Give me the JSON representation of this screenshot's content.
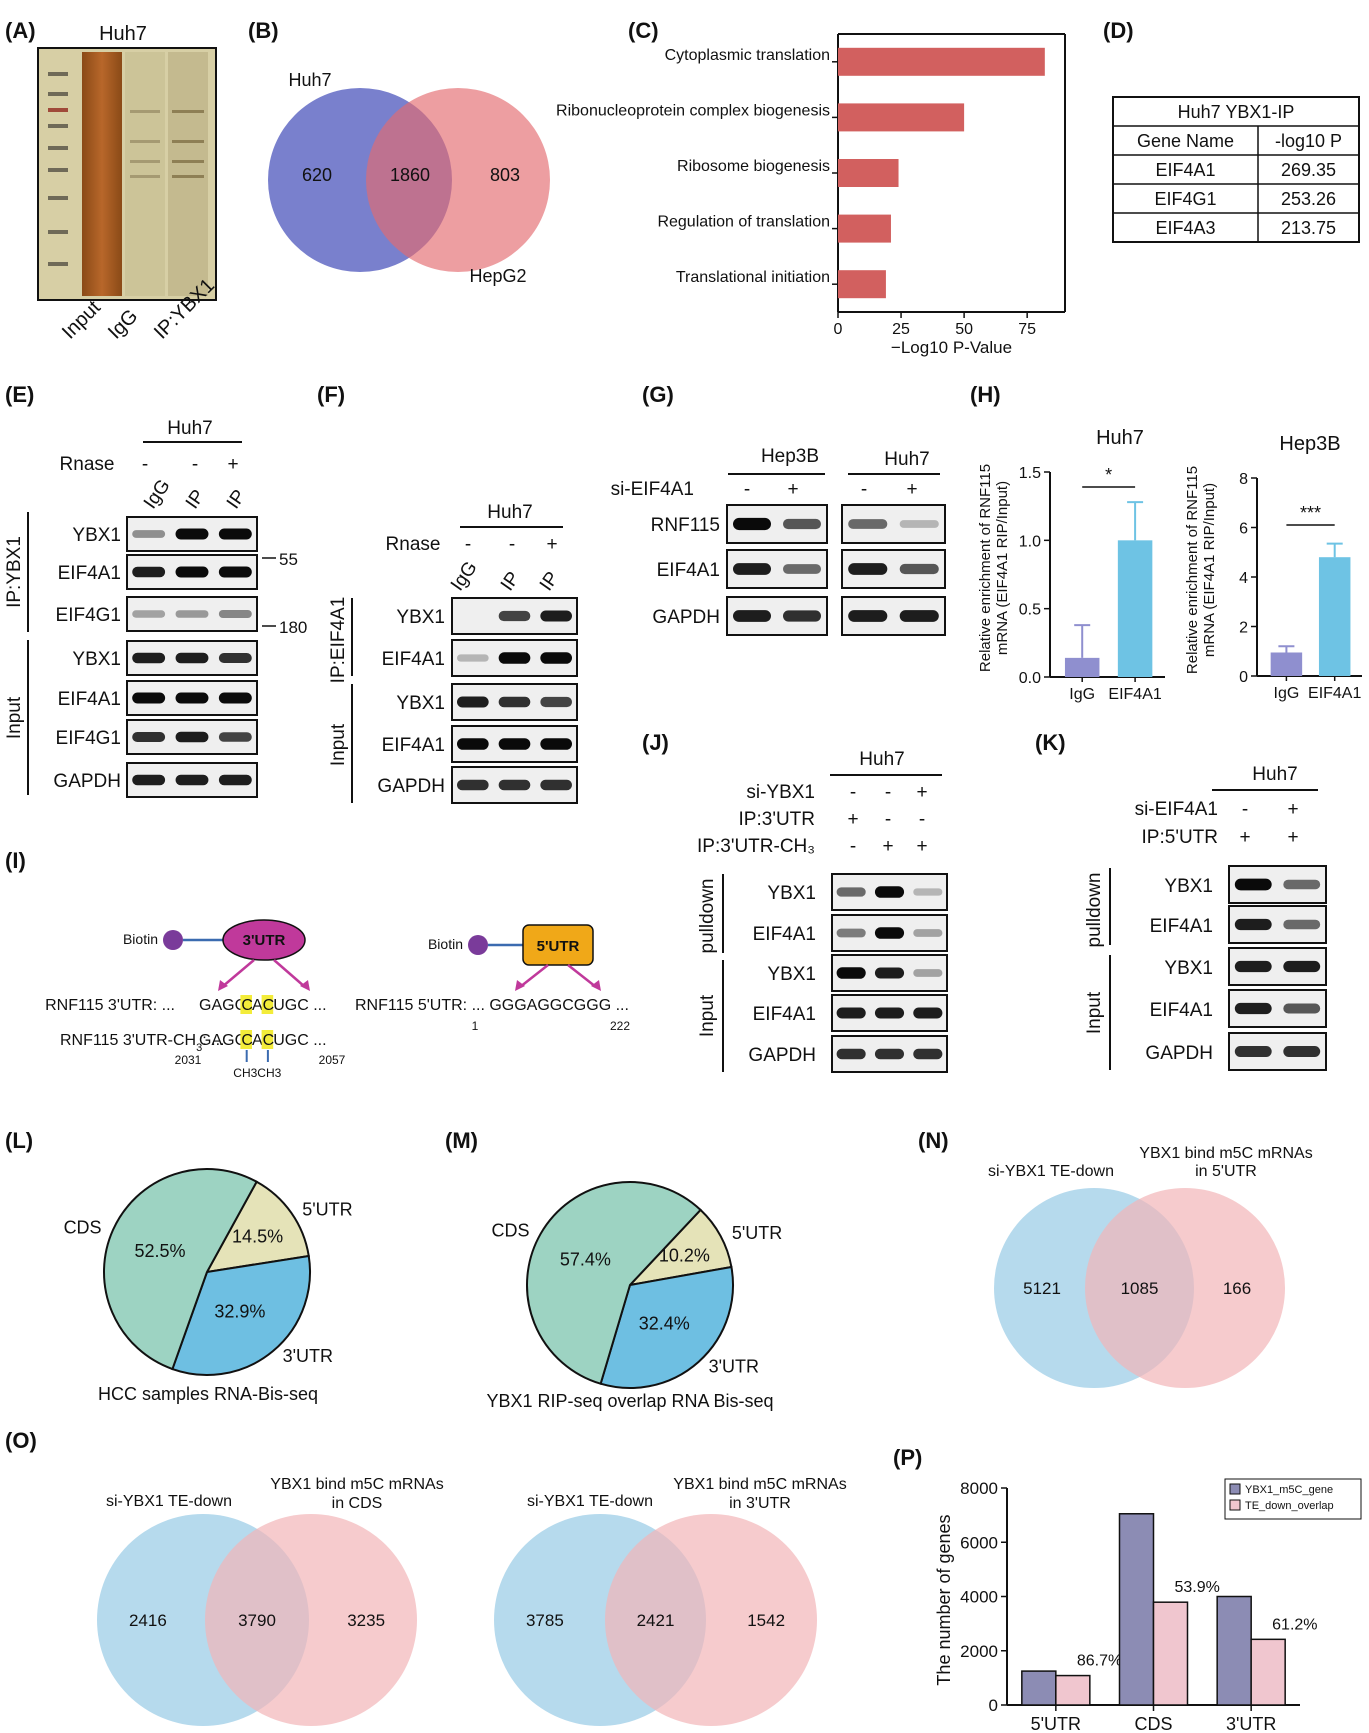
{
  "panels": {
    "A": {
      "label": "(A)",
      "cell": "Huh7",
      "lanes": [
        "Input",
        "IgG",
        "IP:YBX1"
      ]
    },
    "B": {
      "label": "(B)",
      "set1": "Huh7",
      "set2": "HepG2",
      "only1": "620",
      "both": "1860",
      "only2": "803",
      "colors": {
        "set1": "#6a72c8",
        "set2": "#e46a6e"
      }
    },
    "C": {
      "label": "(C)"
    },
    "D": {
      "label": "(D)",
      "title": "Huh7 YBX1-IP",
      "headers": [
        "Gene Name",
        "-log10 P"
      ],
      "rows": [
        [
          "EIF4A1",
          "269.35"
        ],
        [
          "EIF4G1",
          "253.26"
        ],
        [
          "EIF4A3",
          "213.75"
        ]
      ]
    },
    "E": {
      "label": "(E)",
      "cell": "Huh7",
      "rnase": "Rnase",
      "rnase_signs": [
        "-",
        "-",
        "+"
      ],
      "lanes": [
        "IgG",
        "IP",
        "IP"
      ],
      "group_ip": "IP:YBX1",
      "group_input": "Input",
      "ip_bands": [
        "YBX1",
        "EIF4A1",
        "EIF4G1"
      ],
      "input_bands": [
        "YBX1",
        "EIF4A1",
        "EIF4G1",
        "GAPDH"
      ],
      "markers": [
        "55",
        "180"
      ]
    },
    "F": {
      "label": "(F)",
      "cell": "Huh7",
      "rnase": "Rnase",
      "rnase_signs": [
        "-",
        "-",
        "+"
      ],
      "lanes": [
        "IgG",
        "IP",
        "IP"
      ],
      "group_ip": "IP:EIF4A1",
      "group_input": "Input",
      "ip_bands": [
        "YBX1",
        "EIF4A1"
      ],
      "input_bands": [
        "YBX1",
        "EIF4A1",
        "GAPDH"
      ]
    },
    "G": {
      "label": "(G)",
      "cell1": "Hep3B",
      "cell2": "Huh7",
      "treatment": "si-EIF4A1",
      "signs": [
        "-",
        "+",
        "-",
        "+"
      ],
      "bands": [
        "RNF115",
        "EIF4A1",
        "GAPDH"
      ]
    },
    "H": {
      "label": "(H)",
      "ylabel": "Relative enrichment of RNF115 mRNA (EIF4A1 RIP/Input)",
      "ylabel_line1": "Relative enrichment of RNF115",
      "ylabel_line2": "mRNA (EIF4A1 RIP/Input)"
    },
    "I": {
      "label": "(I)",
      "biotin": "Biotin",
      "probe3": "3'UTR",
      "probe5": "5'UTR",
      "seq3_label": "RNF115 3'UTR: ...",
      "seq3_a": "GAGC",
      "seq3_hl1": "C",
      "seq3_b": "A",
      "seq3_hl2": "C",
      "seq3_c": "UGC ...",
      "seq3m_label": "RNF115 3'UTR-CH",
      "seq3m_sub": "3",
      "seq3m_after": ": ...",
      "pos3_start": "2031",
      "pos3_end": "2057",
      "methyl": "CH3CH3",
      "seq5": "RNF115 5'UTR: ... GGGAGGCGGG ...",
      "pos5_start": "1",
      "pos5_end": "222",
      "colors": {
        "probe3": "#c0399b",
        "probe5": "#f0a818",
        "highlight": "#f3ec3a",
        "biotin": "#7a3b9a"
      }
    },
    "J": {
      "label": "(J)",
      "cell": "Huh7",
      "conditions": [
        {
          "name": "si-YBX1",
          "signs": [
            "-",
            "-",
            "+"
          ]
        },
        {
          "name": "IP:3'UTR",
          "signs": [
            "+",
            "-",
            "-"
          ]
        },
        {
          "name": "IP:3'UTR-CH₃",
          "signs": [
            "-",
            "+",
            "+"
          ]
        }
      ],
      "group_pulldown": "pulldown",
      "group_input": "Input",
      "pulldown_bands": [
        "YBX1",
        "EIF4A1"
      ],
      "input_bands": [
        "YBX1",
        "EIF4A1",
        "GAPDH"
      ]
    },
    "K": {
      "label": "(K)",
      "cell": "Huh7",
      "conditions": [
        {
          "name": "si-EIF4A1",
          "signs": [
            "-",
            "+"
          ]
        },
        {
          "name": "IP:5'UTR",
          "signs": [
            "+",
            "+"
          ]
        }
      ],
      "group_pulldown": "pulldown",
      "group_input": "Input",
      "pulldown_bands": [
        "YBX1",
        "EIF4A1"
      ],
      "input_bands": [
        "YBX1",
        "EIF4A1",
        "GAPDH"
      ]
    },
    "L": {
      "label": "(L)",
      "caption": "HCC samples RNA-Bis-seq"
    },
    "M": {
      "label": "(M)",
      "caption": "YBX1 RIP-seq overlap RNA Bis-seq"
    },
    "N": {
      "label": "(N)",
      "set1": "si-YBX1 TE-down",
      "set2_line1": "YBX1 bind m5C mRNAs",
      "set2_line2": "in 5'UTR",
      "only1": "5121",
      "both": "1085",
      "only2": "166"
    },
    "O": {
      "label": "(O)",
      "left": {
        "set1": "si-YBX1 TE-down",
        "set2_line1": "YBX1 bind m5C mRNAs",
        "set2_line2": "in CDS",
        "only1": "2416",
        "both": "3790",
        "only2": "3235"
      },
      "right": {
        "set1": "si-YBX1 TE-down",
        "set2_line1": "YBX1 bind m5C mRNAs",
        "set2_line2": "in 3'UTR",
        "only1": "3785",
        "both": "2421",
        "only2": "1542"
      },
      "colors": {
        "set1": "#a9d4ea",
        "set2": "#f2b5b8"
      }
    },
    "P": {
      "label": "(P)"
    }
  },
  "chart_data": [
    {
      "panel": "C",
      "type": "bar",
      "orientation": "horizontal",
      "categories": [
        "Cytoplasmic translation",
        "Ribonucleoprotein complex biogenesis",
        "Ribosome biogenesis",
        "Regulation of translation",
        "Translational initiation"
      ],
      "values": [
        82,
        50,
        24,
        21,
        19
      ],
      "xlabel": "−Log10 P-Value",
      "xlim": [
        0,
        90
      ],
      "xticks": [
        0,
        25,
        50,
        75
      ],
      "color": "#d2605f"
    },
    {
      "panel": "H-left",
      "type": "bar",
      "title": "Huh7",
      "categories": [
        "IgG",
        "EIF4A1"
      ],
      "values": [
        0.14,
        1.0
      ],
      "errors": [
        0.24,
        0.28
      ],
      "ylim": [
        0,
        1.5
      ],
      "yticks": [
        "0.0",
        "0.5",
        "1.0",
        "1.5"
      ],
      "significance": "*",
      "colors": [
        "#8f8fcf",
        "#6ec3e4"
      ]
    },
    {
      "panel": "H-right",
      "type": "bar",
      "title": "Hep3B",
      "categories": [
        "IgG",
        "EIF4A1"
      ],
      "values": [
        0.95,
        4.8
      ],
      "errors": [
        0.25,
        0.55
      ],
      "ylim": [
        0,
        8
      ],
      "yticks": [
        "0",
        "2",
        "4",
        "6",
        "8"
      ],
      "significance": "***",
      "colors": [
        "#8f8fcf",
        "#6ec3e4"
      ]
    },
    {
      "panel": "L",
      "type": "pie",
      "slices": [
        {
          "name": "5'UTR",
          "value": 14.5,
          "label": "14.5%",
          "color": "#e5e3b8"
        },
        {
          "name": "3'UTR",
          "value": 32.9,
          "label": "32.9%",
          "color": "#6ebfe2"
        },
        {
          "name": "CDS",
          "value": 52.5,
          "label": "52.5%",
          "color": "#9dd3c2"
        }
      ]
    },
    {
      "panel": "M",
      "type": "pie",
      "slices": [
        {
          "name": "5'UTR",
          "value": 10.2,
          "label": "10.2%",
          "color": "#e5e3b8"
        },
        {
          "name": "3'UTR",
          "value": 32.4,
          "label": "32.4%",
          "color": "#6ebfe2"
        },
        {
          "name": "CDS",
          "value": 57.4,
          "label": "57.4%",
          "color": "#9dd3c2"
        }
      ]
    },
    {
      "panel": "P",
      "type": "bar",
      "categories": [
        "5'UTR",
        "CDS",
        "3'UTR"
      ],
      "ylabel": "The number of genes",
      "ylim": [
        0,
        8000
      ],
      "yticks": [
        "0",
        "2000",
        "4000",
        "6000",
        "8000"
      ],
      "series": [
        {
          "name": "YBX1_m5C_gene",
          "values": [
            1250,
            7050,
            4000
          ],
          "color": "#8c8cb4"
        },
        {
          "name": "TE_down_overlap",
          "values": [
            1085,
            3790,
            2421
          ],
          "color": "#f0c6cf"
        }
      ],
      "annotations": [
        "86.7%",
        "53.9%",
        "61.2%"
      ],
      "legend": "top-right"
    }
  ]
}
